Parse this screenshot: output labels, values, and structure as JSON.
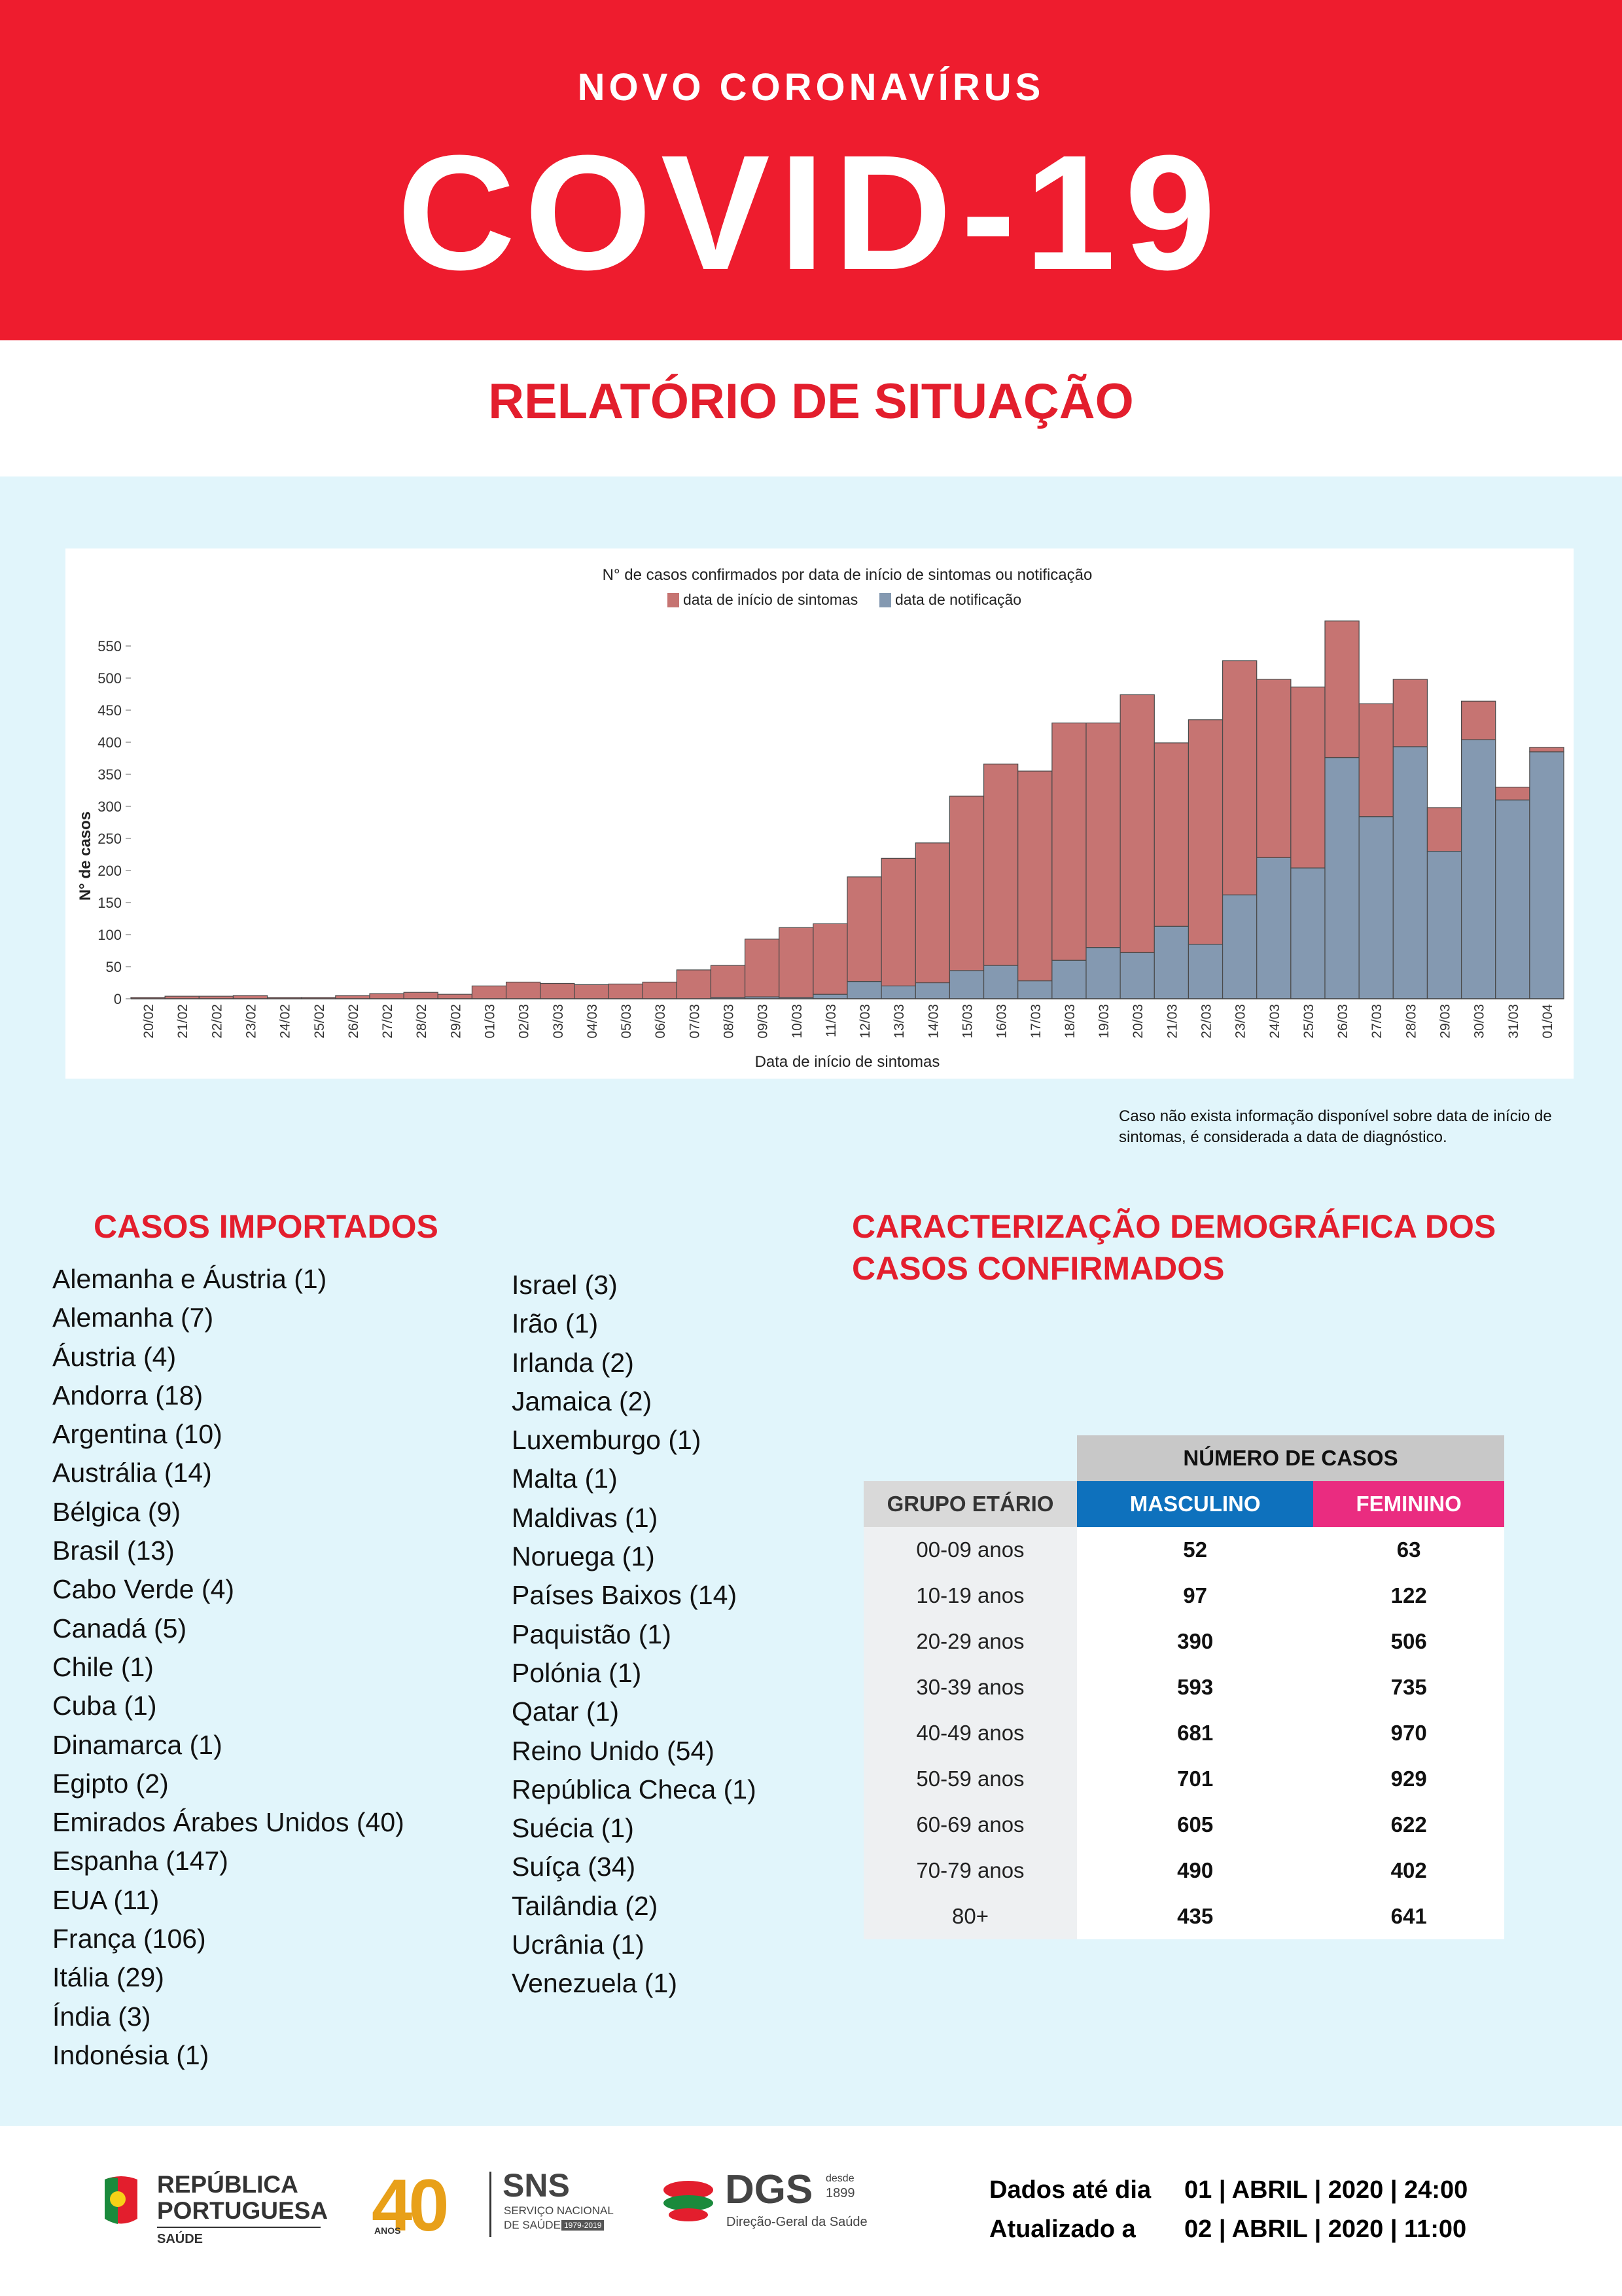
{
  "header": {
    "kicker": "NOVO CORONAVÍRUS",
    "title": "COVID-19",
    "subtitle": "RELATÓRIO DE SITUAÇÃO",
    "colors": {
      "red": "#ee1c2e",
      "panel": "#e1f5fb"
    }
  },
  "chart_data": {
    "type": "bar",
    "title": "N° de casos confirmados por data de início de sintomas ou notificação",
    "xlabel": "Data de início de sintomas",
    "ylabel": "N° de casos",
    "ylim": [
      0,
      600
    ],
    "yticks": [
      0,
      50,
      100,
      150,
      200,
      250,
      300,
      350,
      400,
      450,
      500,
      550
    ],
    "stacked": true,
    "legend_position": "top",
    "categories": [
      "20/02",
      "21/02",
      "22/02",
      "23/02",
      "24/02",
      "25/02",
      "26/02",
      "27/02",
      "28/02",
      "29/02",
      "01/03",
      "02/03",
      "03/03",
      "04/03",
      "05/03",
      "06/03",
      "07/03",
      "08/03",
      "09/03",
      "10/03",
      "11/03",
      "12/03",
      "13/03",
      "14/03",
      "15/03",
      "16/03",
      "17/03",
      "18/03",
      "19/03",
      "20/03",
      "21/03",
      "22/03",
      "23/03",
      "24/03",
      "25/03",
      "26/03",
      "27/03",
      "28/03",
      "29/03",
      "30/03",
      "31/03",
      "01/04"
    ],
    "series": [
      {
        "name": "data de notificação",
        "color": "#8499b1",
        "values": [
          0,
          0,
          0,
          0,
          0,
          0,
          0,
          0,
          0,
          0,
          0,
          0,
          0,
          0,
          0,
          0,
          0,
          2,
          3,
          2,
          7,
          27,
          20,
          25,
          44,
          52,
          28,
          60,
          80,
          72,
          113,
          85,
          162,
          220,
          204,
          376,
          284,
          393,
          230,
          404,
          310,
          385
        ]
      },
      {
        "name": "data de início de sintomas",
        "color": "#c67472",
        "values": [
          2,
          4,
          4,
          5,
          2,
          2,
          5,
          8,
          10,
          7,
          20,
          26,
          24,
          22,
          23,
          26,
          45,
          50,
          90,
          109,
          110,
          163,
          199,
          218,
          272,
          314,
          327,
          370,
          350,
          402,
          286,
          350,
          365,
          278,
          282,
          213,
          176,
          105,
          68,
          60,
          20,
          7
        ]
      }
    ]
  },
  "note": "Caso não exista informação disponível sobre data de início de sintomas, é considerada a data de diagnóstico.",
  "imported": {
    "title": "CASOS IMPORTADOS",
    "col1": [
      "Alemanha e Áustria (1)",
      "Alemanha (7)",
      "Áustria (4)",
      "Andorra (18)",
      "Argentina (10)",
      "Austrália (14)",
      "Bélgica (9)",
      "Brasil (13)",
      "Cabo Verde (4)",
      "Canadá (5)",
      "Chile (1)",
      "Cuba (1)",
      "Dinamarca (1)",
      "Egipto (2)",
      "Emirados Árabes Unidos (40)",
      "Espanha (147)",
      "EUA (11)",
      "França (106)",
      "Itália (29)",
      "Índia (3)",
      "Indonésia (1)"
    ],
    "col2": [
      "Israel (3)",
      "Irão (1)",
      "Irlanda (2)",
      "Jamaica (2)",
      "Luxemburgo (1)",
      "Malta (1)",
      "Maldivas (1)",
      "Noruega (1)",
      "Países Baixos (14)",
      "Paquistão (1)",
      "Polónia (1)",
      "Qatar (1)",
      "Reino Unido (54)",
      "República Checa (1)",
      "Suécia (1)",
      "Suíça (34)",
      "Tailândia (2)",
      "Ucrânia (1)",
      "Venezuela (1)"
    ]
  },
  "demographics": {
    "title": "CARACTERIZAÇÃO DEMOGRÁFICA DOS CASOS CONFIRMADOS",
    "header_cases": "NÚMERO DE CASOS",
    "header_group": "GRUPO ETÁRIO",
    "header_male": "MASCULINO",
    "header_female": "FEMININO",
    "rows": [
      {
        "age": "00-09 anos",
        "m": "52",
        "f": "63"
      },
      {
        "age": "10-19 anos",
        "m": "97",
        "f": "122"
      },
      {
        "age": "20-29 anos",
        "m": "390",
        "f": "506"
      },
      {
        "age": "30-39 anos",
        "m": "593",
        "f": "735"
      },
      {
        "age": "40-49 anos",
        "m": "681",
        "f": "970"
      },
      {
        "age": "50-59 anos",
        "m": "701",
        "f": "929"
      },
      {
        "age": "60-69 anos",
        "m": "605",
        "f": "622"
      },
      {
        "age": "70-79 anos",
        "m": "490",
        "f": "402"
      },
      {
        "age": "80+",
        "m": "435",
        "f": "641"
      }
    ]
  },
  "footer": {
    "logo1_line1": "REPÚBLICA",
    "logo1_line2": "PORTUGUESA",
    "logo1_line3": "SAÚDE",
    "logo2_number": "40",
    "logo2_small": "ANOS",
    "logo3_title": "SNS",
    "logo3_line1": "SERVIÇO NACIONAL",
    "logo3_line2": "DE SAÚDE",
    "logo3_years": "1979-2019",
    "logo4_title": "DGS",
    "logo4_since1": "desde",
    "logo4_since2": "1899",
    "logo4_sub": "Direção-Geral da Saúde",
    "label_data": "Dados até dia",
    "label_updated": "Atualizado a",
    "value_data": "01 | ABRIL | 2020 | 24:00",
    "value_updated": "02 | ABRIL | 2020 | 11:00"
  }
}
